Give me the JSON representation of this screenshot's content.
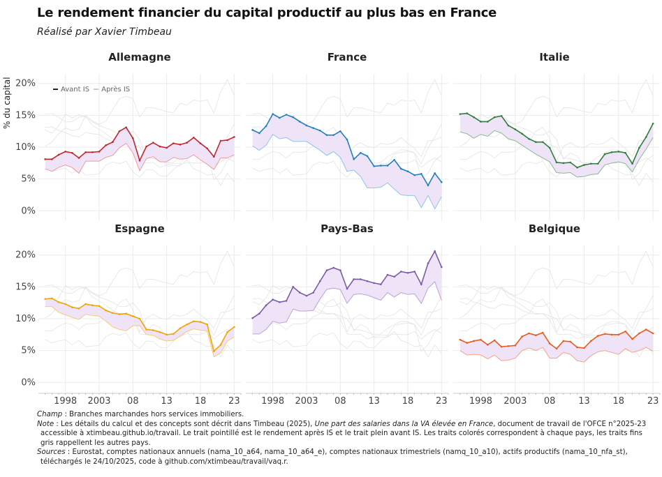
{
  "chart_data": {
    "type": "line",
    "title": "Le rendement financier du capital productif au plus bas en France",
    "subtitle": "Réalisé par Xavier Timbeau",
    "ylabel": "% du capital",
    "ylim": [
      -1.5,
      21.5
    ],
    "yticks": [
      0,
      5,
      10,
      15,
      20
    ],
    "ytick_labels": [
      "0%",
      "5%",
      "10%",
      "15%",
      "20%"
    ],
    "xlim": [
      1994,
      2024
    ],
    "xticks": [
      1998,
      2003,
      2008,
      2013,
      2018,
      2023
    ],
    "xtick_labels": [
      "1998",
      "2003",
      "08",
      "13",
      "18",
      "23"
    ],
    "grid": true,
    "legend": {
      "placement": "top-left",
      "entries": [
        "Avant IS",
        "Après IS"
      ]
    },
    "x": [
      1995,
      1996,
      1997,
      1998,
      1999,
      2000,
      2001,
      2002,
      2003,
      2004,
      2005,
      2006,
      2007,
      2008,
      2009,
      2010,
      2011,
      2012,
      2013,
      2014,
      2015,
      2016,
      2017,
      2018,
      2019,
      2020,
      2021,
      2022,
      2023
    ],
    "panels": [
      {
        "name": "Allemagne",
        "color": "#c0262c",
        "light_color": "#f09a9d",
        "avant_is": [
          8.1,
          8.1,
          8.8,
          9.3,
          9.1,
          8.3,
          9.2,
          9.2,
          9.3,
          10.3,
          10.8,
          12.5,
          13.1,
          11.4,
          7.9,
          10.1,
          10.7,
          10.1,
          9.9,
          10.6,
          10.4,
          10.7,
          11.5,
          10.6,
          9.8,
          8.5,
          11.0,
          11.1,
          11.6
        ],
        "apres_is": [
          6.6,
          6.2,
          6.8,
          7.2,
          6.8,
          5.9,
          7.8,
          7.8,
          7.8,
          8.4,
          8.7,
          9.9,
          10.6,
          9.1,
          6.3,
          8.2,
          8.5,
          7.7,
          7.7,
          8.4,
          8.1,
          8.2,
          8.8,
          8.0,
          7.3,
          6.5,
          8.3,
          8.3,
          8.8
        ]
      },
      {
        "name": "France",
        "color": "#1f7fbf",
        "light_color": "#8ec4ea",
        "avant_is": [
          12.7,
          12.2,
          13.3,
          15.2,
          14.6,
          15.1,
          14.7,
          14.0,
          13.4,
          13.0,
          12.6,
          11.9,
          11.9,
          12.5,
          11.2,
          8.1,
          9.1,
          8.6,
          7.0,
          7.1,
          7.1,
          8.0,
          6.6,
          6.2,
          5.6,
          5.8,
          4.0,
          5.9,
          4.5
        ],
        "apres_is": [
          10.2,
          9.5,
          10.3,
          12.0,
          11.3,
          11.5,
          10.9,
          10.9,
          10.9,
          10.2,
          9.5,
          8.7,
          9.3,
          8.4,
          6.2,
          6.4,
          5.4,
          3.6,
          3.6,
          3.7,
          4.4,
          3.4,
          2.5,
          2.4,
          2.4,
          0.5,
          2.4,
          0.3,
          2.2
        ]
      },
      {
        "name": "Italie",
        "color": "#2e7d3a",
        "light_color": "#8ab893",
        "avant_is": [
          15.2,
          15.3,
          14.7,
          14.0,
          14.0,
          14.7,
          14.9,
          13.4,
          12.8,
          12.1,
          11.3,
          10.8,
          10.8,
          9.9,
          7.6,
          7.5,
          7.6,
          6.8,
          7.2,
          7.4,
          7.4,
          8.9,
          9.2,
          9.3,
          9.1,
          7.4,
          9.9,
          11.6,
          13.7
        ],
        "apres_is": [
          12.4,
          12.1,
          11.4,
          12.0,
          11.7,
          12.6,
          12.2,
          11.3,
          11.0,
          10.3,
          9.6,
          8.9,
          8.3,
          7.7,
          6.0,
          5.9,
          6.0,
          5.3,
          5.4,
          5.7,
          5.8,
          7.2,
          7.5,
          7.7,
          7.4,
          6.1,
          8.1,
          9.7,
          11.5
        ]
      },
      {
        "name": "Espagne",
        "color": "#f0a500",
        "light_color": "#f5cb72",
        "avant_is": [
          13.1,
          13.2,
          12.6,
          12.3,
          11.8,
          11.6,
          12.3,
          12.1,
          12.0,
          11.3,
          10.9,
          10.7,
          10.8,
          10.4,
          10.0,
          8.3,
          8.2,
          7.9,
          7.5,
          7.6,
          8.5,
          9.1,
          9.6,
          9.5,
          9.1,
          4.9,
          5.9,
          7.9,
          8.7
        ],
        "apres_is": [
          11.9,
          11.9,
          11.0,
          10.6,
          10.2,
          9.9,
          10.7,
          10.5,
          10.4,
          9.6,
          8.7,
          8.3,
          8.1,
          8.9,
          8.9,
          7.5,
          7.4,
          6.8,
          6.5,
          6.6,
          7.3,
          8.0,
          8.4,
          8.2,
          8.1,
          4.0,
          4.6,
          6.5,
          7.1
        ]
      },
      {
        "name": "Pays-Bas",
        "color": "#7a5aa6",
        "light_color": "#b9a3d6",
        "avant_is": [
          10.1,
          10.8,
          12.1,
          13.0,
          12.6,
          12.8,
          15.0,
          14.1,
          13.6,
          14.1,
          15.9,
          17.6,
          18.0,
          17.6,
          14.7,
          16.2,
          16.2,
          15.9,
          15.6,
          15.4,
          16.9,
          16.6,
          17.4,
          17.2,
          17.4,
          15.4,
          18.7,
          20.6,
          18.1
        ],
        "apres_is": [
          7.6,
          7.6,
          8.3,
          9.6,
          9.3,
          9.5,
          11.5,
          11.2,
          11.2,
          11.3,
          13.1,
          14.6,
          14.8,
          14.6,
          12.4,
          13.8,
          13.9,
          13.7,
          13.3,
          12.9,
          14.1,
          13.4,
          14.1,
          13.8,
          13.9,
          12.4,
          14.8,
          15.8,
          12.9
        ]
      },
      {
        "name": "Belgique",
        "color": "#e85a1c",
        "light_color": "#f3a585",
        "avant_is": [
          6.7,
          6.2,
          6.5,
          6.7,
          5.9,
          6.6,
          5.6,
          5.7,
          5.8,
          7.2,
          7.7,
          7.4,
          7.8,
          6.1,
          5.3,
          6.5,
          6.4,
          5.5,
          5.4,
          6.5,
          7.3,
          7.6,
          7.5,
          7.5,
          8.0,
          6.8,
          7.7,
          8.3,
          7.7
        ],
        "apres_is": [
          5.0,
          4.3,
          4.4,
          4.3,
          3.7,
          4.3,
          3.4,
          3.5,
          3.8,
          5.0,
          5.4,
          5.0,
          5.5,
          3.8,
          3.8,
          4.7,
          4.4,
          3.4,
          3.2,
          4.2,
          4.8,
          5.0,
          4.7,
          4.4,
          5.3,
          4.7,
          5.0,
          5.5,
          4.9
        ]
      }
    ],
    "fill_color": "#efe3f7"
  },
  "notes": {
    "champ_label": "Champ",
    "champ_text": " : Branches marchandes hors services immobiliers.",
    "note_label": "Note",
    "note_text_1": " : Les détails du calcul et des concepts sont décrit dans Timbeau (2025), ",
    "note_italic": "Une part des salaries dans la VA élevée en France",
    "note_text_2": ", document de travail de l'OFCE n°2025-23",
    "note_line2": "accessible à xtimbeau.github.io/travail. Le trait pointillé est le rendement après IS et le trait plein avant IS. Les traits colorés correspondent à chaque pays, les traits fins",
    "note_line3": "gris rappellent les autres pays.",
    "sources_label": "Sources",
    "sources_text": " : Eurostat, comptes nationaux annuels (nama_10_a64, nama_10_a64_e), comptes nationaux trimestriels (namq_10_a10), actifs productifs (nama_10_nfa_st),",
    "sources_line2": "téléchargés le 24/10/2025, code à github.com/xtimbeau/travail/vaq.r."
  }
}
